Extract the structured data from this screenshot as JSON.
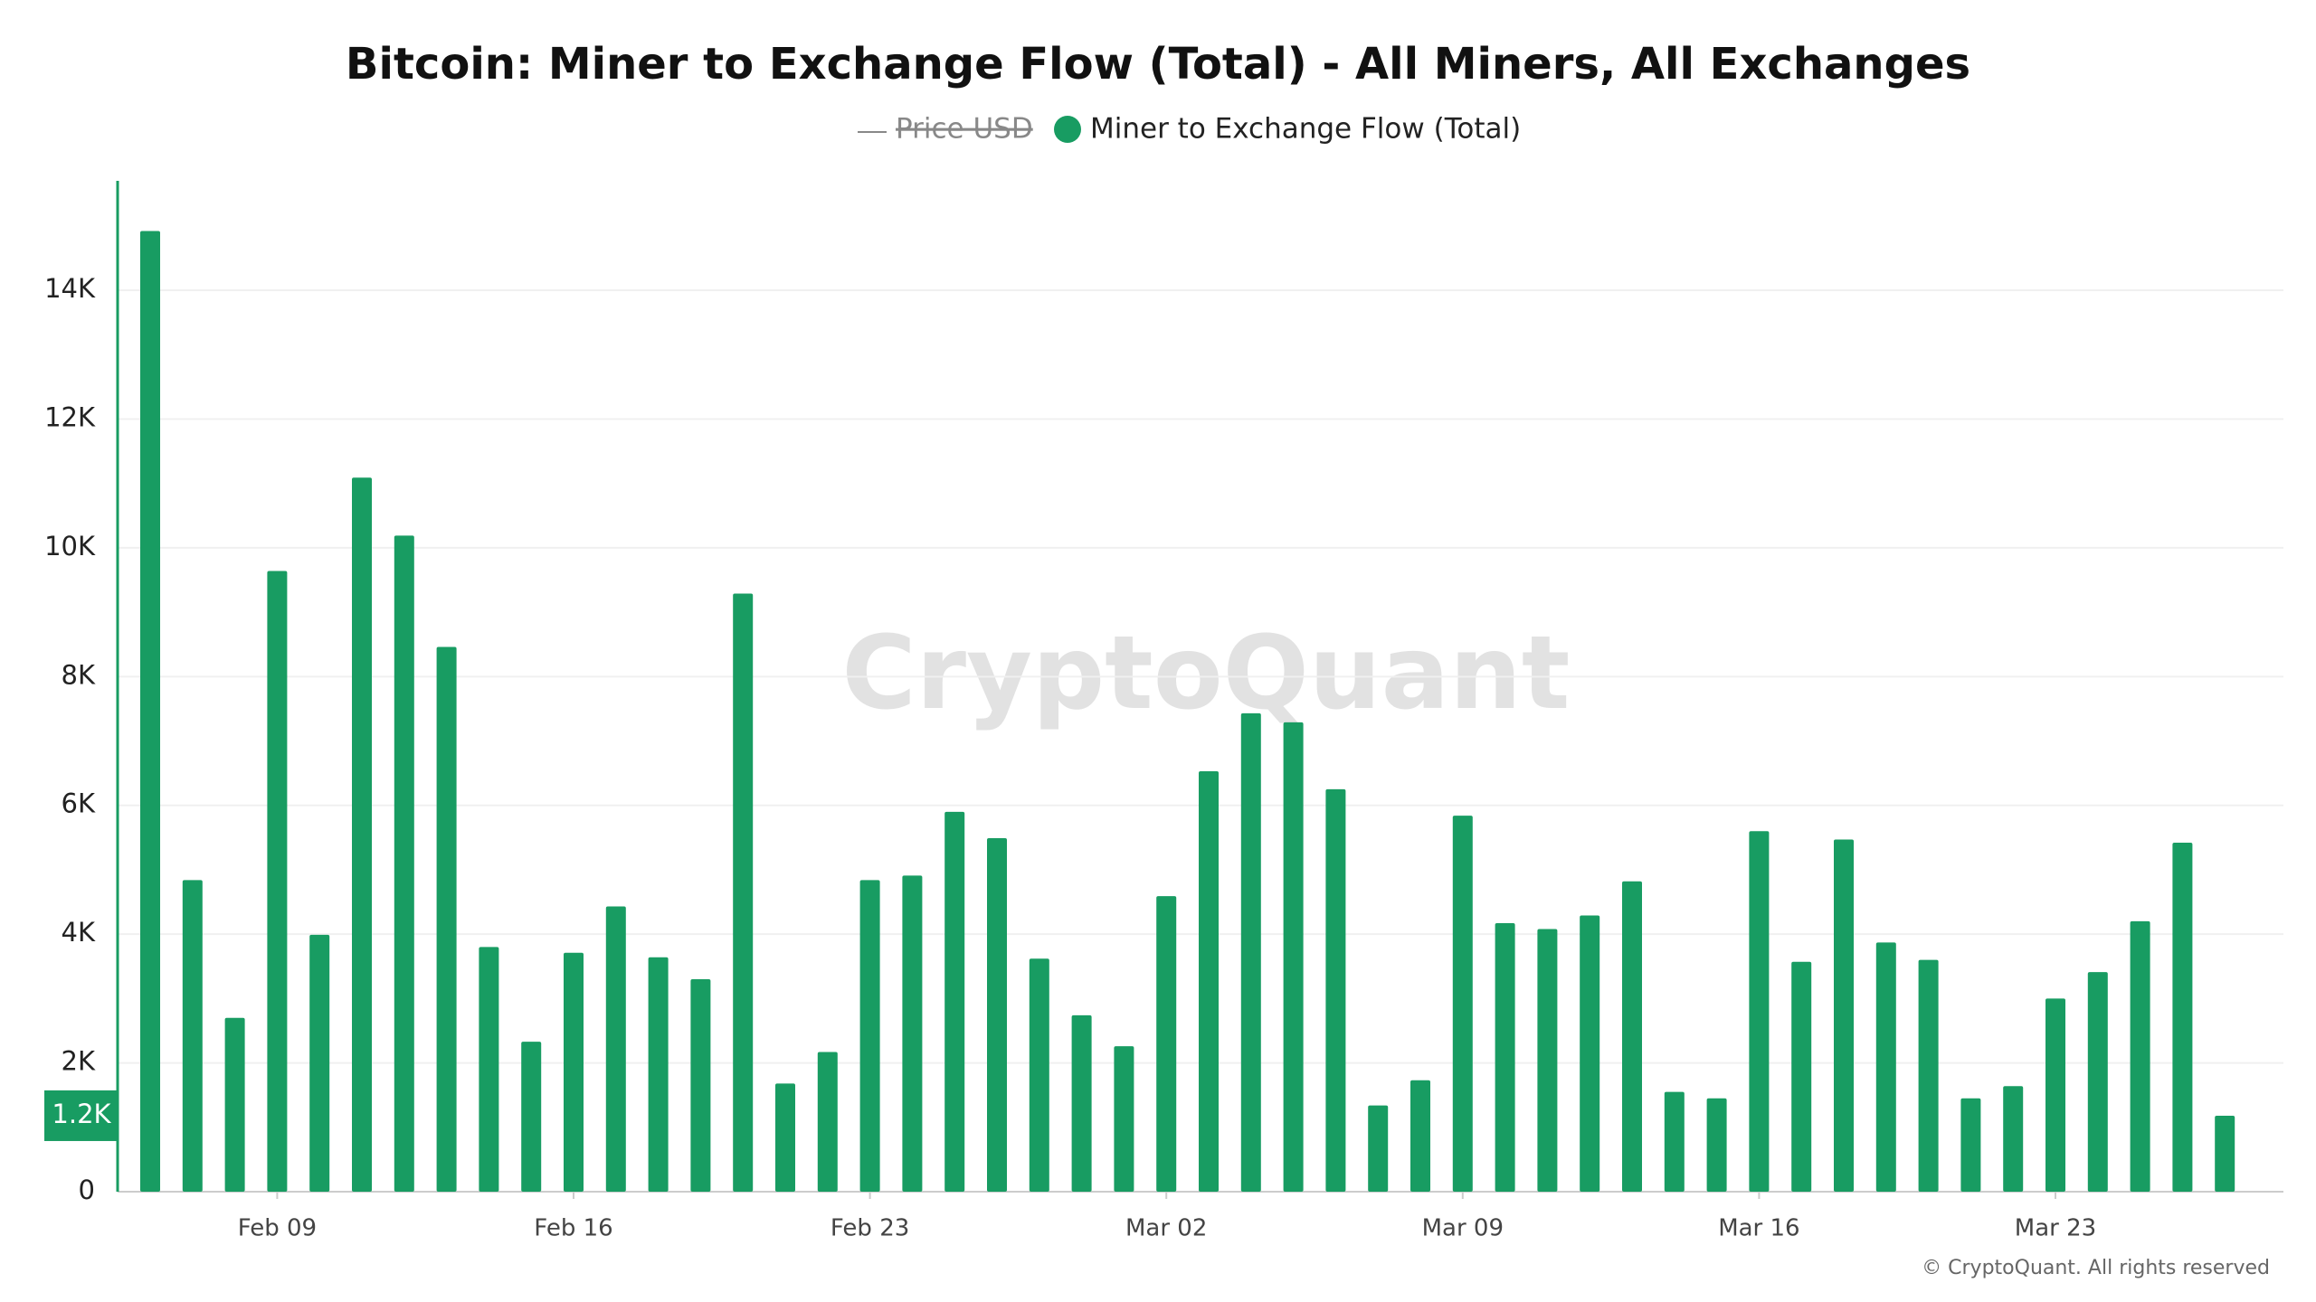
{
  "chart_data": {
    "type": "bar",
    "title": "Bitcoin: Miner to Exchange Flow (Total) - All Miners, All Exchanges",
    "hidden_series": [
      {
        "name": "Price USD",
        "color": "#888888"
      }
    ],
    "series": [
      {
        "name": "Miner to Exchange Flow (Total)",
        "color": "#189c62",
        "values": [
          14920,
          4840,
          2700,
          9640,
          3990,
          11090,
          10190,
          8460,
          3800,
          2330,
          3710,
          4430,
          3640,
          3300,
          9290,
          1680,
          2170,
          4840,
          4910,
          5900,
          5490,
          3620,
          2740,
          2260,
          4590,
          6530,
          7430,
          7290,
          6250,
          1340,
          1730,
          5840,
          4170,
          4080,
          4290,
          4820,
          1550,
          1450,
          5600,
          3570,
          5470,
          3870,
          3600,
          1450,
          1640,
          3000,
          3410,
          4200,
          5420,
          1180
        ]
      }
    ],
    "categories": [
      null,
      null,
      null,
      "Feb 09",
      null,
      null,
      null,
      null,
      null,
      null,
      "Feb 16",
      null,
      null,
      null,
      null,
      null,
      null,
      "Feb 23",
      null,
      null,
      null,
      null,
      null,
      null,
      "Mar 02",
      null,
      null,
      null,
      null,
      null,
      null,
      "Mar 09",
      null,
      null,
      null,
      null,
      null,
      null,
      "Mar 16",
      null,
      null,
      null,
      null,
      null,
      null,
      "Mar 23",
      null,
      null,
      null,
      null
    ],
    "current_label": "1.2K",
    "ylim": [
      0,
      15700
    ],
    "yticks": [
      0,
      {
        "value": 2000,
        "label": "2K"
      },
      {
        "value": 4000,
        "label": "4K"
      },
      {
        "value": 6000,
        "label": "6K"
      },
      {
        "value": 8000,
        "label": "8K"
      },
      {
        "value": 10000,
        "label": "10K"
      },
      {
        "value": 12000,
        "label": "12K"
      },
      {
        "value": 14000,
        "label": "14K"
      }
    ],
    "grid": true,
    "watermark": "CryptoQuant",
    "footer": "© CryptoQuant. All rights reserved"
  }
}
